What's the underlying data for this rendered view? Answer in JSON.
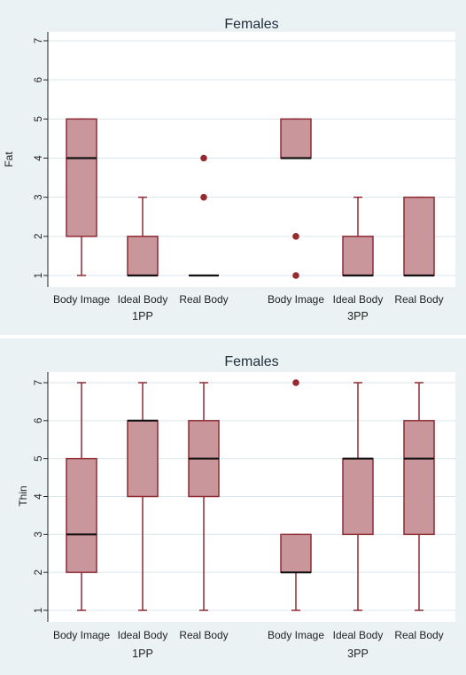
{
  "colors": {
    "panel_background": "#eaf2f3",
    "plot_background": "#ffffff",
    "box_fill": "#c9979b",
    "box_stroke": "#8e2a33",
    "median": "#111111",
    "outlier": "#962a2e",
    "grid": "#d9e6ec"
  },
  "chart_data": [
    {
      "type": "box",
      "title": "Females",
      "xlabel": "",
      "ylabel": "Fat",
      "ylim": [
        1,
        7
      ],
      "yticks": [
        1,
        2,
        3,
        4,
        5,
        6,
        7
      ],
      "grid": true,
      "groups": [
        {
          "label": "1PP",
          "boxes": [
            {
              "category": "Body Image",
              "whisker_low": 1,
              "q1": 2,
              "median": 4,
              "q3": 5,
              "whisker_high": 5,
              "outliers": []
            },
            {
              "category": "Ideal Body",
              "whisker_low": 1,
              "q1": 1,
              "median": 1,
              "q3": 2,
              "whisker_high": 3,
              "outliers": []
            },
            {
              "category": "Real Body",
              "whisker_low": 1,
              "q1": 1,
              "median": 1,
              "q3": 1,
              "whisker_high": 1,
              "outliers": [
                3,
                4
              ]
            }
          ]
        },
        {
          "label": "3PP",
          "boxes": [
            {
              "category": "Body Image",
              "whisker_low": 4,
              "q1": 4,
              "median": 4,
              "q3": 5,
              "whisker_high": 5,
              "outliers": [
                1,
                2
              ]
            },
            {
              "category": "Ideal Body",
              "whisker_low": 1,
              "q1": 1,
              "median": 1,
              "q3": 2,
              "whisker_high": 3,
              "outliers": []
            },
            {
              "category": "Real Body",
              "whisker_low": 1,
              "q1": 1,
              "median": 1,
              "q3": 3,
              "whisker_high": 3,
              "outliers": []
            }
          ]
        }
      ]
    },
    {
      "type": "box",
      "title": "Females",
      "xlabel": "",
      "ylabel": "Thin",
      "ylim": [
        1,
        7
      ],
      "yticks": [
        1,
        2,
        3,
        4,
        5,
        6,
        7
      ],
      "grid": true,
      "groups": [
        {
          "label": "1PP",
          "boxes": [
            {
              "category": "Body Image",
              "whisker_low": 1,
              "q1": 2,
              "median": 3,
              "q3": 5,
              "whisker_high": 7,
              "outliers": []
            },
            {
              "category": "Ideal Body",
              "whisker_low": 1,
              "q1": 4,
              "median": 6,
              "q3": 6,
              "whisker_high": 7,
              "outliers": []
            },
            {
              "category": "Real Body",
              "whisker_low": 1,
              "q1": 4,
              "median": 5,
              "q3": 6,
              "whisker_high": 7,
              "outliers": []
            }
          ]
        },
        {
          "label": "3PP",
          "boxes": [
            {
              "category": "Body Image",
              "whisker_low": 1,
              "q1": 2,
              "median": 2,
              "q3": 3,
              "whisker_high": 3,
              "outliers": [
                7
              ]
            },
            {
              "category": "Ideal Body",
              "whisker_low": 1,
              "q1": 3,
              "median": 5,
              "q3": 5,
              "whisker_high": 7,
              "outliers": []
            },
            {
              "category": "Real Body",
              "whisker_low": 1,
              "q1": 3,
              "median": 5,
              "q3": 6,
              "whisker_high": 7,
              "outliers": []
            }
          ]
        }
      ]
    }
  ]
}
